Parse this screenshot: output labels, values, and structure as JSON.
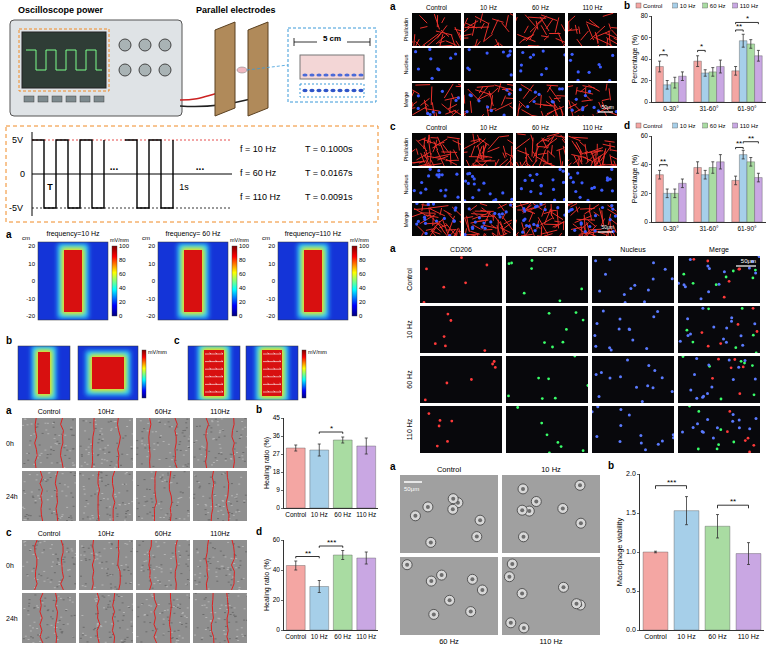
{
  "setup": {
    "instrument": "Oscilloscope power",
    "electrodes": "Parallel electrodes",
    "distance": "5 cm"
  },
  "waveform": {
    "levels": [
      "5V",
      "0",
      "-5V"
    ],
    "period": "T",
    "ellipsis": "...",
    "second": "1s",
    "settings": [
      {
        "frequency": "f = 10 Hz",
        "period": "T = 0.1000s"
      },
      {
        "frequency": "f = 60 Hz",
        "period": "T = 0.0167s"
      },
      {
        "frequency": "f = 110 Hz",
        "period": "T = 0.0091s"
      }
    ]
  },
  "simulation": {
    "letters": [
      "a",
      "b",
      "c"
    ],
    "titles": [
      "frequency=10 Hz",
      "frequency= 60 Hz",
      "frequency=110 Hz"
    ],
    "axis_unit": "cm",
    "axis_ticks": [
      -20,
      -10,
      0,
      10,
      20
    ],
    "colorbar_unit": "mV/mm",
    "colorbar_ticks": [
      0,
      20,
      40,
      60,
      80,
      100
    ]
  },
  "cytoskeleton": [
    {
      "letter": "a",
      "columns": [
        "Control",
        "10 Hz",
        "60 Hz",
        "110 Hz"
      ],
      "rows": [
        "Phalloidin",
        "Nucleus",
        "Merge"
      ],
      "scale": "50μm"
    },
    {
      "letter": "c",
      "columns": [
        "Control",
        "10 Hz",
        "60 Hz",
        "110 Hz"
      ],
      "rows": [
        "Phalloidin",
        "Nucleus",
        "Merge"
      ],
      "scale": "50μm"
    }
  ],
  "wound": [
    {
      "letter": "a",
      "columns": [
        "Control",
        "10Hz",
        "60Hz",
        "110Hz"
      ],
      "rows": [
        "0h",
        "24h"
      ]
    },
    {
      "letter": "c",
      "columns": [
        "Control",
        "10Hz",
        "60Hz",
        "110Hz"
      ],
      "rows": [
        "0h",
        "24h"
      ]
    }
  ],
  "polarization": {
    "letter": "a",
    "columns": [
      "CD206",
      "CCR7",
      "Nucleus",
      "Merge"
    ],
    "rows": [
      "Control",
      "10 Hz",
      "60 Hz",
      "110 Hz"
    ],
    "scale": "50μm"
  },
  "macrophage": {
    "letter": "a",
    "labels": [
      "Control",
      "10 Hz",
      "60 Hz",
      "110 Hz"
    ],
    "scale": "50μm"
  },
  "chart_data": [
    {
      "type": "bar",
      "panel": "b",
      "categories": [
        "0-30°",
        "31-60°",
        "61-90°"
      ],
      "y_label": "Percentage (%)",
      "ylim": [
        0,
        80
      ],
      "yticks": [
        0,
        20,
        40,
        60,
        80
      ],
      "grid": false,
      "legend": "top",
      "series": [
        {
          "name": "Control",
          "color": "#f4a6a3",
          "values": [
            33,
            38,
            29
          ],
          "errors": [
            5,
            5,
            4
          ]
        },
        {
          "name": "10 Hz",
          "color": "#a6cfe9",
          "values": [
            16,
            27,
            57
          ],
          "errors": [
            4,
            3,
            6
          ]
        },
        {
          "name": "60 Hz",
          "color": "#a9dca2",
          "values": [
            18,
            28,
            54
          ],
          "errors": [
            5,
            4,
            4
          ]
        },
        {
          "name": "110 Hz",
          "color": "#c9a7e3",
          "values": [
            24,
            33,
            43
          ],
          "errors": [
            4,
            6,
            5
          ]
        }
      ],
      "significance": [
        {
          "category": "0-30°",
          "from": "Control",
          "to": "10 Hz",
          "y": 44,
          "text": "*"
        },
        {
          "category": "31-60°",
          "from": "Control",
          "to": "10 Hz",
          "y": 48,
          "text": "*"
        },
        {
          "category": "61-90°",
          "from": "Control",
          "to": "10 Hz",
          "y": 67,
          "text": "**"
        },
        {
          "category": "61-90°",
          "from": "Control",
          "to": "110 Hz",
          "y": 74,
          "text": "*"
        }
      ]
    },
    {
      "type": "bar",
      "panel": "d",
      "categories": [
        "0-30°",
        "31-60°",
        "61-90°"
      ],
      "y_label": "Percentage (%)",
      "ylim": [
        0,
        60
      ],
      "yticks": [
        0,
        20,
        40,
        60
      ],
      "grid": false,
      "legend": "top",
      "series": [
        {
          "name": "Control",
          "color": "#f4a6a3",
          "values": [
            33,
            38,
            29
          ],
          "errors": [
            3,
            4,
            3
          ]
        },
        {
          "name": "10 Hz",
          "color": "#a6cfe9",
          "values": [
            20,
            33,
            47
          ],
          "errors": [
            3,
            3,
            3
          ]
        },
        {
          "name": "60 Hz",
          "color": "#a9dca2",
          "values": [
            20,
            38,
            42
          ],
          "errors": [
            3,
            4,
            3
          ]
        },
        {
          "name": "110 Hz",
          "color": "#c9a7e3",
          "values": [
            27,
            42,
            31
          ],
          "errors": [
            3,
            5,
            3
          ]
        }
      ],
      "significance": [
        {
          "category": "0-30°",
          "from": "Control",
          "to": "10 Hz",
          "y": 40,
          "text": "**"
        },
        {
          "category": "61-90°",
          "from": "Control",
          "to": "10 Hz",
          "y": 52,
          "text": "**"
        },
        {
          "category": "61-90°",
          "from": "10 Hz",
          "to": "110 Hz",
          "y": 56,
          "text": "**"
        }
      ]
    },
    {
      "type": "bar",
      "panel": "b",
      "categories": [
        "Control",
        "10 Hz",
        "60 Hz",
        "110 Hz"
      ],
      "y_label": "Healing ratio (%)",
      "ylim": [
        0,
        45
      ],
      "yticks": [
        0,
        9,
        18,
        27,
        36,
        45
      ],
      "grid": false,
      "colors": [
        "#f4a6a3",
        "#a6cfe9",
        "#a9dca2",
        "#c9a7e3"
      ],
      "values": [
        30,
        29,
        34,
        31
      ],
      "errors": [
        1.5,
        3,
        1.5,
        4
      ],
      "significance": [
        {
          "from": "10 Hz",
          "to": "60 Hz",
          "y": 38,
          "text": "*"
        }
      ]
    },
    {
      "type": "bar",
      "panel": "d",
      "categories": [
        "Control",
        "10 Hz",
        "60 Hz",
        "110 Hz"
      ],
      "y_label": "Healing ratio (%)",
      "ylim": [
        0,
        60
      ],
      "yticks": [
        0,
        20,
        40,
        60
      ],
      "grid": false,
      "colors": [
        "#f4a6a3",
        "#a6cfe9",
        "#a9dca2",
        "#c9a7e3"
      ],
      "values": [
        43,
        29,
        50,
        48
      ],
      "errors": [
        3,
        4,
        3,
        4
      ],
      "significance": [
        {
          "from": "Control",
          "to": "10 Hz",
          "y": 49,
          "text": "**"
        },
        {
          "from": "10 Hz",
          "to": "60 Hz",
          "y": 56,
          "text": "***"
        }
      ]
    },
    {
      "type": "bar",
      "panel": "b",
      "categories": [
        "Control",
        "10 Hz",
        "60 Hz",
        "110 Hz"
      ],
      "y_label": "Macrophage viability",
      "ylim": [
        0,
        2
      ],
      "yticks": [
        {
          "value": 0,
          "label": "0.0"
        },
        0.5,
        {
          "value": 1,
          "label": "1.0"
        },
        1.5,
        {
          "value": 2,
          "label": "2.0"
        }
      ],
      "grid": false,
      "colors": [
        "#f4a6a3",
        "#a6cfe9",
        "#a9dca2",
        "#c9a7e3"
      ],
      "values": [
        1.0,
        1.53,
        1.33,
        0.98
      ],
      "errors": [
        0.01,
        0.18,
        0.15,
        0.14
      ],
      "significance": [
        {
          "from": "Control",
          "to": "10 Hz",
          "y": 1.85,
          "text": "***"
        },
        {
          "from": "60 Hz",
          "to": "110 Hz",
          "y": 1.6,
          "text": "**"
        }
      ]
    }
  ]
}
